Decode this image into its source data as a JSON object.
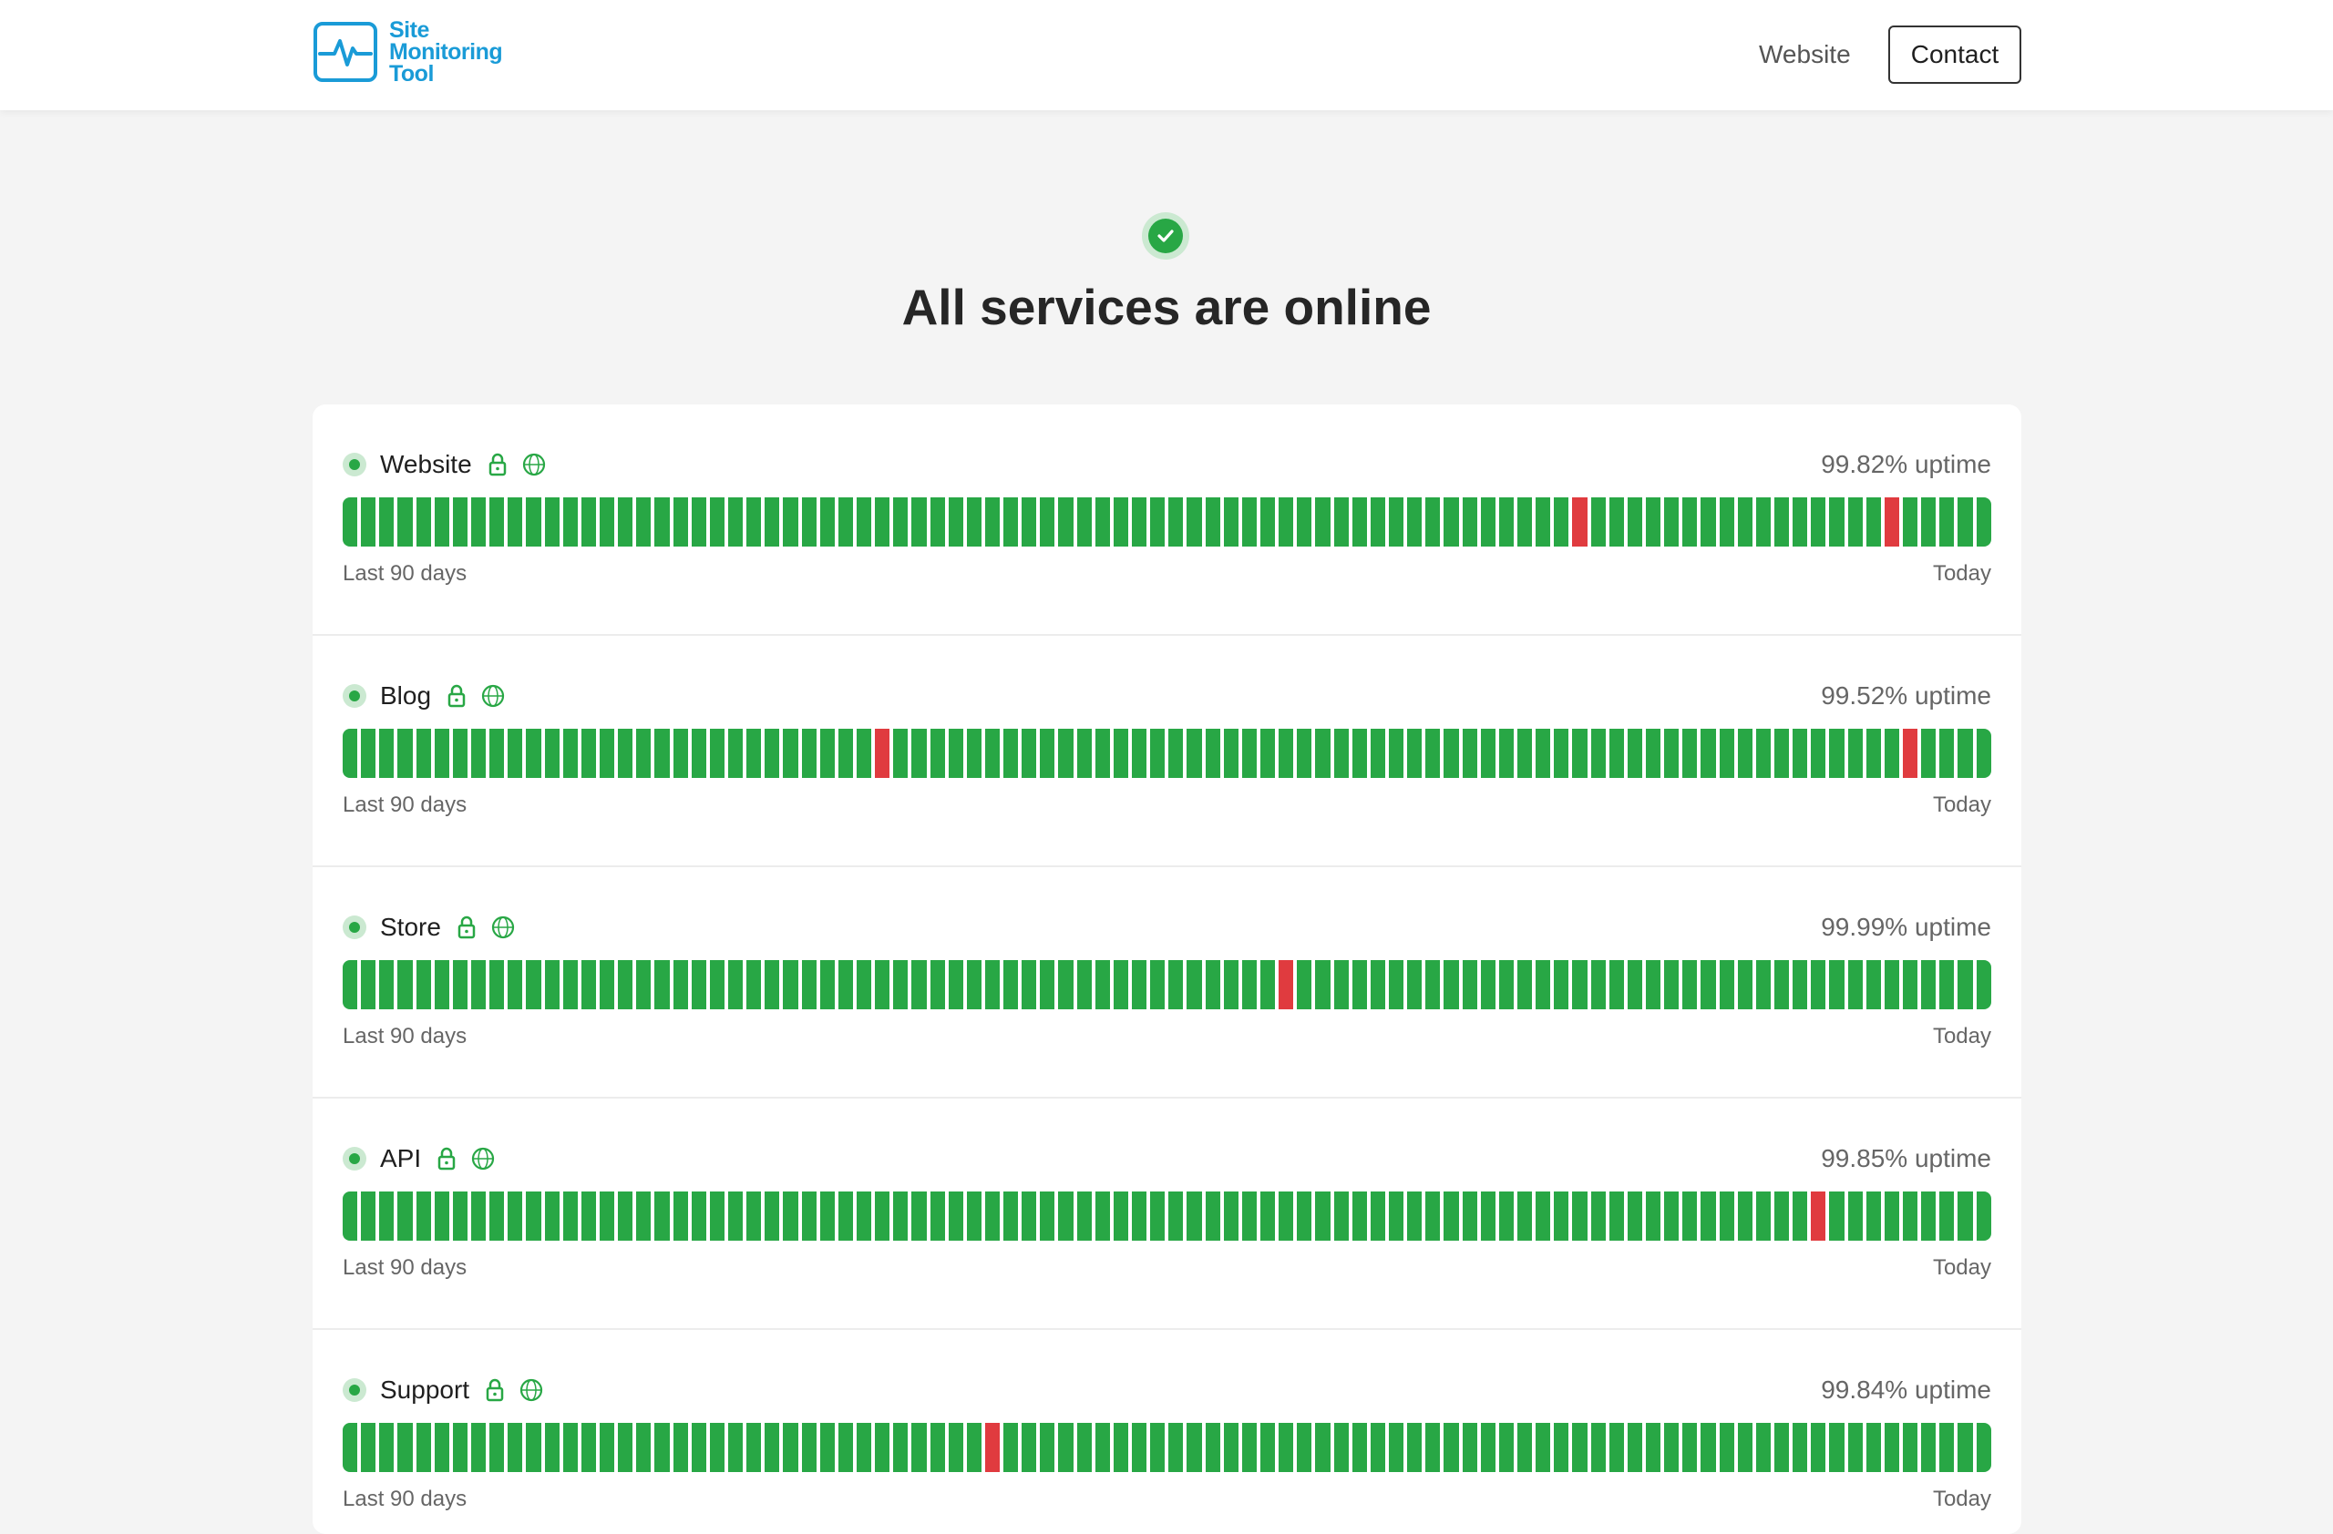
{
  "header": {
    "logo_lines": [
      "Site",
      "Monitoring",
      "Tool"
    ],
    "nav_link": "Website",
    "contact_label": "Contact"
  },
  "hero": {
    "icon": "check-circle-icon",
    "title": "All services are online"
  },
  "colors": {
    "up": "#28a745",
    "down": "#e03b3f",
    "brand": "#1a9bd7"
  },
  "services": [
    {
      "name": "Website",
      "uptime": "99.82% uptime",
      "range_start": "Last 90 days",
      "range_end": "Today",
      "days": 90,
      "down_days": [
        67,
        84
      ]
    },
    {
      "name": "Blog",
      "uptime": "99.52% uptime",
      "range_start": "Last 90 days",
      "range_end": "Today",
      "days": 90,
      "down_days": [
        29,
        85
      ]
    },
    {
      "name": "Store",
      "uptime": "99.99% uptime",
      "range_start": "Last 90 days",
      "range_end": "Today",
      "days": 90,
      "down_days": [
        51
      ]
    },
    {
      "name": "API",
      "uptime": "99.85% uptime",
      "range_start": "Last 90 days",
      "range_end": "Today",
      "days": 90,
      "down_days": [
        80
      ]
    },
    {
      "name": "Support",
      "uptime": "99.84% uptime",
      "range_start": "Last 90 days",
      "range_end": "Today",
      "days": 90,
      "down_days": [
        35
      ]
    }
  ]
}
